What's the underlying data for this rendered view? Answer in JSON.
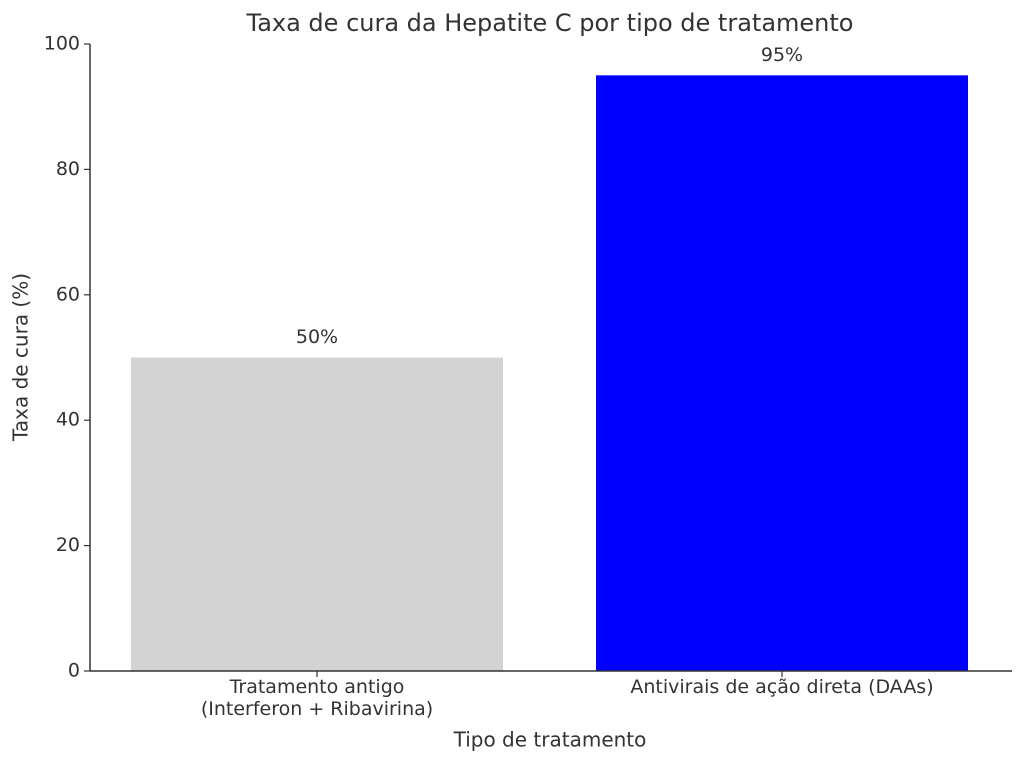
{
  "chart_data": {
    "type": "bar",
    "title": "Taxa de cura da Hepatite C por tipo de tratamento",
    "x_label": "Tipo de tratamento",
    "y_label": "Taxa de cura (%)",
    "categories": [
      "Tratamento antigo\n(Interferon + Ribavirina)",
      "Antivirais de ação direta (DAAs)"
    ],
    "values": [
      50,
      95
    ],
    "value_labels": [
      "50%",
      "95%"
    ],
    "colors": [
      "#d3d3d3",
      "#0000ff"
    ],
    "ylim": [
      0,
      100
    ],
    "yticks": [
      0,
      20,
      40,
      60,
      80,
      100
    ],
    "grid": false
  }
}
